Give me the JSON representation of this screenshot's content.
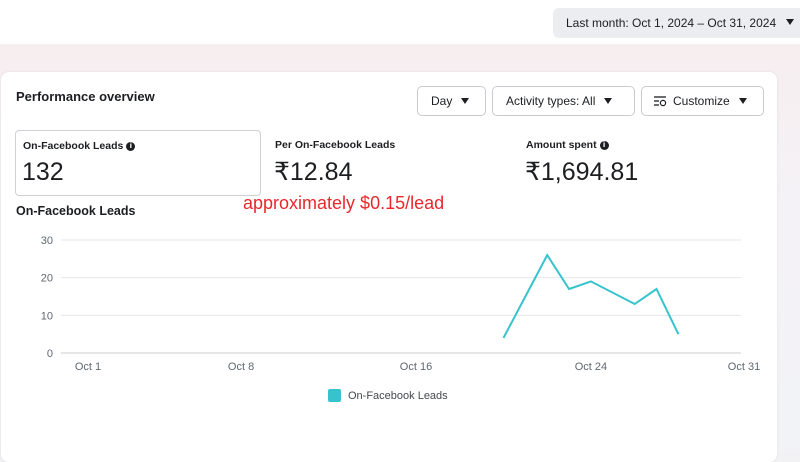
{
  "header": {
    "date_range": "Last month: Oct 1, 2024 – Oct 31, 2024"
  },
  "panel": {
    "title": "Performance overview",
    "buttons": {
      "day": "Day",
      "activity": "Activity types: All",
      "customize": "Customize"
    }
  },
  "metrics": [
    {
      "label": "On-Facebook Leads",
      "value": "132"
    },
    {
      "label": "Per On-Facebook Leads",
      "value": "₹12.84"
    },
    {
      "label": "Amount spent",
      "value": "₹1,694.81"
    }
  ],
  "annotation": "approximately $0.15/lead",
  "colors": {
    "series": "#36c3cc",
    "annotation": "#e8282b"
  },
  "icons": {
    "info": "info-icon",
    "customize": "sliders-icon",
    "dropdown": "caret-down-icon"
  },
  "chart_data": {
    "type": "line",
    "title": "On-Facebook Leads",
    "ylim": [
      0,
      30
    ],
    "yticks": [
      0,
      10,
      20,
      30
    ],
    "xlim": [
      1,
      31
    ],
    "xticks": [
      {
        "day": 1,
        "label": "Oct 1"
      },
      {
        "day": 8,
        "label": "Oct 8"
      },
      {
        "day": 16,
        "label": "Oct 16"
      },
      {
        "day": 24,
        "label": "Oct 24"
      },
      {
        "day": 31,
        "label": "Oct 31"
      }
    ],
    "grid": true,
    "legend": "bottom",
    "series": [
      {
        "name": "On-Facebook Leads",
        "x": [
          20,
          22,
          23,
          24,
          26,
          27,
          28
        ],
        "values": [
          4,
          26,
          17,
          19,
          13,
          17,
          5
        ]
      }
    ]
  }
}
